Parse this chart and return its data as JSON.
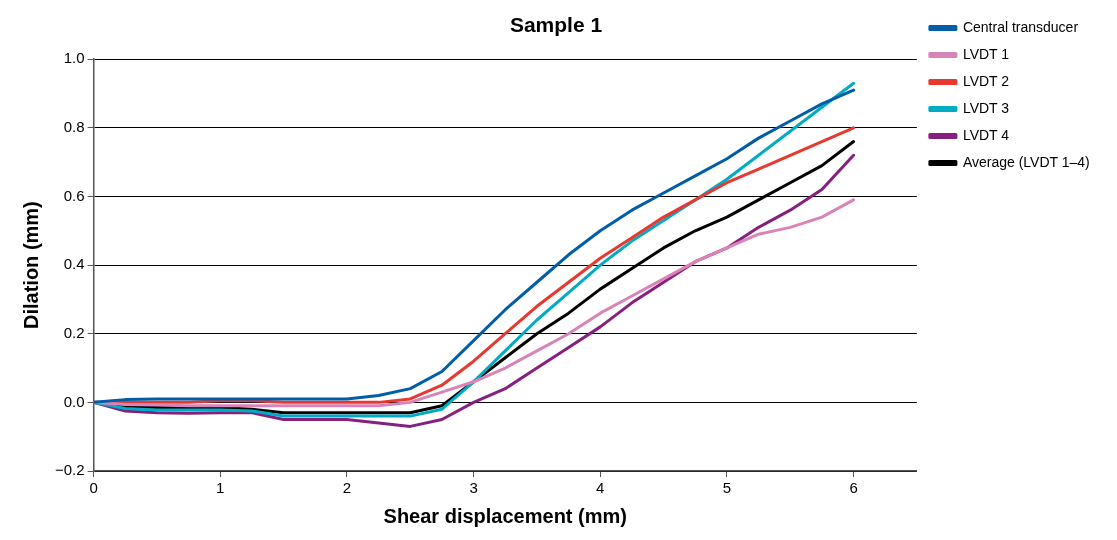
{
  "chart_data": {
    "type": "line",
    "title": "Sample 1",
    "xlabel": "Shear displacement (mm)",
    "ylabel": "Dilation (mm)",
    "x": [
      0,
      0.25,
      0.5,
      0.75,
      1,
      1.25,
      1.5,
      1.75,
      2,
      2.25,
      2.5,
      2.75,
      3,
      3.25,
      3.5,
      3.75,
      4,
      4.25,
      4.5,
      4.75,
      5,
      5.25,
      5.5,
      5.75,
      6
    ],
    "series": [
      {
        "name": "Central transducer",
        "color": "#005da8",
        "values": [
          0,
          0.008,
          0.01,
          0.01,
          0.01,
          0.01,
          0.01,
          0.01,
          0.01,
          0.02,
          0.04,
          0.09,
          0.18,
          0.27,
          0.35,
          0.43,
          0.5,
          0.56,
          0.61,
          0.66,
          0.71,
          0.77,
          0.82,
          0.87,
          0.91
        ]
      },
      {
        "name": "LVDT 1",
        "color": "#d884b8",
        "values": [
          0,
          -0.006,
          -0.008,
          -0.01,
          -0.01,
          -0.01,
          -0.01,
          -0.01,
          -0.01,
          -0.01,
          0,
          0.03,
          0.06,
          0.1,
          0.15,
          0.2,
          0.26,
          0.31,
          0.36,
          0.41,
          0.45,
          0.49,
          0.51,
          0.54,
          0.59
        ]
      },
      {
        "name": "LVDT 2",
        "color": "#e8382f",
        "values": [
          0,
          0,
          0,
          0,
          0.005,
          0.005,
          0,
          0,
          0,
          0,
          0.01,
          0.05,
          0.12,
          0.2,
          0.28,
          0.35,
          0.42,
          0.48,
          0.54,
          0.59,
          0.64,
          0.68,
          0.72,
          0.76,
          0.8
        ]
      },
      {
        "name": "LVDT 3",
        "color": "#00abc4",
        "values": [
          0,
          -0.018,
          -0.022,
          -0.022,
          -0.022,
          -0.025,
          -0.04,
          -0.04,
          -0.04,
          -0.04,
          -0.04,
          -0.02,
          0.06,
          0.15,
          0.24,
          0.32,
          0.4,
          0.47,
          0.53,
          0.59,
          0.65,
          0.72,
          0.79,
          0.86,
          0.93
        ]
      },
      {
        "name": "LVDT 4",
        "color": "#86207e",
        "values": [
          0,
          -0.025,
          -0.03,
          -0.032,
          -0.03,
          -0.03,
          -0.05,
          -0.05,
          -0.05,
          -0.06,
          -0.07,
          -0.05,
          0,
          0.04,
          0.1,
          0.16,
          0.22,
          0.29,
          0.35,
          0.41,
          0.45,
          0.51,
          0.56,
          0.62,
          0.72
        ]
      },
      {
        "name": "Average (LVDT 1–4)",
        "color": "#000000",
        "values": [
          0,
          -0.012,
          -0.015,
          -0.015,
          -0.015,
          -0.02,
          -0.03,
          -0.03,
          -0.03,
          -0.03,
          -0.03,
          -0.01,
          0.06,
          0.13,
          0.2,
          0.26,
          0.33,
          0.39,
          0.45,
          0.5,
          0.54,
          0.59,
          0.64,
          0.69,
          0.76
        ]
      }
    ],
    "xlim": [
      0,
      6.5
    ],
    "xticks": [
      0,
      1,
      2,
      3,
      4,
      5,
      6
    ],
    "ylim": [
      -0.2,
      1.0
    ],
    "yticks": [
      {
        "value": -0.2,
        "label": "−0.2"
      },
      {
        "value": 0,
        "label": "0.0"
      },
      {
        "value": 0.2,
        "label": "0.2"
      },
      {
        "value": 0.4,
        "label": "0.4"
      },
      {
        "value": 0.6,
        "label": "0.6"
      },
      {
        "value": 0.8,
        "label": "0.8"
      },
      {
        "value": 1.0,
        "label": "1.0"
      }
    ],
    "grid": "y",
    "legend": "right",
    "marker": "none",
    "line_style": "solid"
  }
}
